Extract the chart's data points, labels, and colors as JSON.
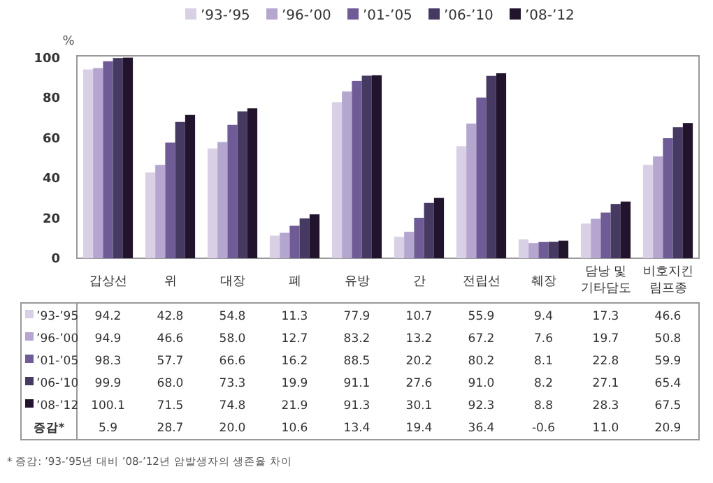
{
  "chart_data": {
    "type": "bar",
    "ylabel": "%",
    "categories": [
      "갑상선",
      "위",
      "대장",
      "폐",
      "유방",
      "간",
      "전립선",
      "췌장",
      "담낭 및 기타담도",
      "비호지킨 림프종"
    ],
    "series": [
      {
        "name": "’93-’95",
        "color": "#d9d0e6",
        "values": [
          94.2,
          42.8,
          54.8,
          11.3,
          77.9,
          10.7,
          55.9,
          9.4,
          17.3,
          46.6
        ],
        "value_labels": [
          "94.2",
          "42.8",
          "54.8",
          "11.3",
          "77.9",
          "10.7",
          "55.9",
          "9.4",
          "17.3",
          "46.6"
        ]
      },
      {
        "name": "’96-’00",
        "color": "#b5a6cf",
        "values": [
          94.9,
          46.6,
          58.0,
          12.7,
          83.2,
          13.2,
          67.2,
          7.6,
          19.7,
          50.8
        ],
        "value_labels": [
          "94.9",
          "46.6",
          "58.0",
          "12.7",
          "83.2",
          "13.2",
          "67.2",
          "7.6",
          "19.7",
          "50.8"
        ]
      },
      {
        "name": "’01-’05",
        "color": "#6f5b96",
        "values": [
          98.3,
          57.7,
          66.6,
          16.2,
          88.5,
          20.2,
          80.2,
          8.1,
          22.8,
          59.9
        ],
        "value_labels": [
          "98.3",
          "57.7",
          "66.6",
          "16.2",
          "88.5",
          "20.2",
          "80.2",
          "8.1",
          "22.8",
          "59.9"
        ]
      },
      {
        "name": "’06-’10",
        "color": "#463a62",
        "values": [
          99.9,
          68.0,
          73.3,
          19.9,
          91.1,
          27.6,
          91.0,
          8.2,
          27.1,
          65.4
        ],
        "value_labels": [
          "99.9",
          "68.0",
          "73.3",
          "19.9",
          "91.1",
          "27.6",
          "91.0",
          "8.2",
          "27.1",
          "65.4"
        ]
      },
      {
        "name": "’08-’12",
        "color": "#22142c",
        "values": [
          100.1,
          71.5,
          74.8,
          21.9,
          91.3,
          30.1,
          92.3,
          8.8,
          28.3,
          67.5
        ],
        "value_labels": [
          "100.1",
          "71.5",
          "74.8",
          "21.9",
          "91.3",
          "30.1",
          "92.3",
          "8.8",
          "28.3",
          "67.5"
        ]
      }
    ],
    "ylim": [
      0,
      101
    ],
    "yticks": [
      0,
      20,
      40,
      60,
      80,
      100
    ],
    "grid": false,
    "legend": "top",
    "annotations": [
      "증감*",
      "5.9",
      "28.7",
      "20.0",
      "10.6",
      "13.4",
      "19.4",
      "36.4",
      "-0.6",
      "11.0",
      "20.9",
      "* 증감: ’93-’95년 대비 ’08-’12년 암발생자의 생존율 차이"
    ]
  }
}
